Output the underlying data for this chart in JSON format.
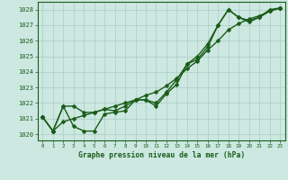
{
  "x": [
    0,
    1,
    2,
    3,
    4,
    5,
    6,
    7,
    8,
    9,
    10,
    11,
    12,
    13,
    14,
    15,
    16,
    17,
    18,
    19,
    20,
    21,
    22,
    23
  ],
  "line1": [
    1021.1,
    1020.2,
    1021.8,
    1021.8,
    1021.4,
    1021.4,
    1021.6,
    1021.5,
    1021.8,
    1022.2,
    1022.2,
    1022.0,
    1022.7,
    1023.5,
    1024.5,
    1025.0,
    1025.8,
    1027.0,
    1028.0,
    1027.5,
    1027.3,
    1027.5,
    1028.0,
    1028.1
  ],
  "line2": [
    1021.1,
    1020.2,
    1021.8,
    1020.5,
    1020.2,
    1020.2,
    1021.3,
    1021.4,
    1021.5,
    1022.2,
    1022.2,
    1021.8,
    1022.6,
    1023.2,
    1024.5,
    1024.8,
    1025.6,
    1027.0,
    1028.0,
    1027.5,
    1027.2,
    1027.5,
    1027.9,
    1028.1
  ],
  "line3": [
    1021.1,
    1020.2,
    1020.8,
    1021.0,
    1021.2,
    1021.4,
    1021.6,
    1021.8,
    1022.0,
    1022.2,
    1022.5,
    1022.7,
    1023.1,
    1023.6,
    1024.2,
    1024.7,
    1025.4,
    1026.0,
    1026.7,
    1027.1,
    1027.4,
    1027.6,
    1027.9,
    1028.1
  ],
  "bg_color": "#cce8e0",
  "line_color": "#1a5c1a",
  "grid_color": "#aaccc4",
  "text_color": "#1a5c1a",
  "title": "Graphe pression niveau de la mer (hPa)",
  "ylim": [
    1019.6,
    1028.5
  ],
  "yticks": [
    1020,
    1021,
    1022,
    1023,
    1024,
    1025,
    1026,
    1027,
    1028
  ],
  "xlim": [
    -0.5,
    23.5
  ],
  "marker_size": 2.5,
  "linewidth": 1.0
}
